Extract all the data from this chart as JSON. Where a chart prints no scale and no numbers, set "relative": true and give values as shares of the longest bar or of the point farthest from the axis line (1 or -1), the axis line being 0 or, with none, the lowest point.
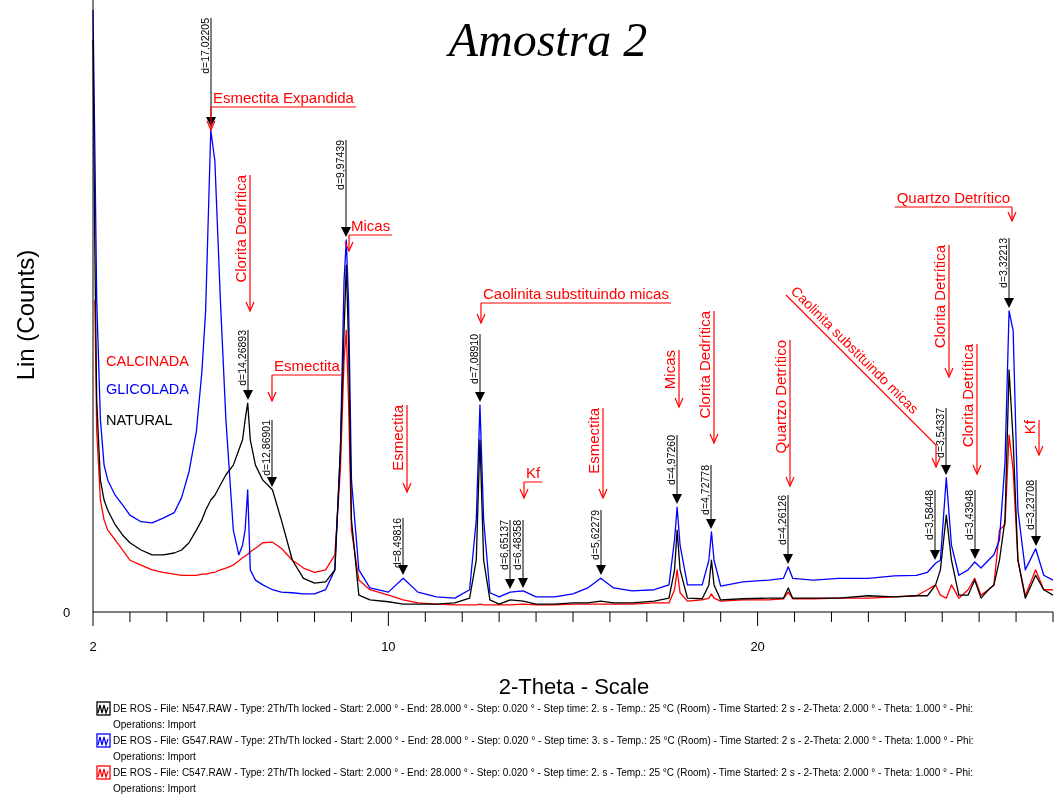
{
  "chart_data": {
    "type": "line",
    "title": "Amostra 2",
    "xlabel": "2-Theta - Scale",
    "ylabel": "Lin (Counts)",
    "relative": true,
    "legend": "bottom",
    "xlim": [
      2,
      28
    ],
    "xticks": [
      2,
      {
        "value": 3,
        "label": null
      },
      {
        "value": 4,
        "label": null
      },
      {
        "value": 5,
        "label": null
      },
      {
        "value": 6,
        "label": null
      },
      {
        "value": 7,
        "label": null
      },
      {
        "value": 8,
        "label": null
      },
      {
        "value": 9,
        "label": null
      },
      10,
      {
        "value": 11,
        "label": null
      },
      {
        "value": 12,
        "label": null
      },
      {
        "value": 13,
        "label": null
      },
      {
        "value": 14,
        "label": null
      },
      {
        "value": 15,
        "label": null
      },
      {
        "value": 16,
        "label": null
      },
      {
        "value": 17,
        "label": null
      },
      {
        "value": 18,
        "label": null
      },
      {
        "value": 19,
        "label": null
      },
      20,
      {
        "value": 21,
        "label": null
      },
      {
        "value": 22,
        "label": null
      },
      {
        "value": 23,
        "label": null
      },
      {
        "value": 24,
        "label": null
      },
      {
        "value": 25,
        "label": null
      },
      {
        "value": 26,
        "label": null
      },
      {
        "value": 27,
        "label": null
      },
      {
        "value": 28,
        "label": null
      }
    ],
    "x": [
      2,
      2.05,
      2.1,
      2.2,
      2.3,
      2.4,
      2.6,
      2.8,
      3,
      3.3,
      3.6,
      3.9,
      4.2,
      4.4,
      4.6,
      4.8,
      4.95,
      5.05,
      5.19,
      5.3,
      5.45,
      5.6,
      5.8,
      5.95,
      6.05,
      6.12,
      6.19,
      6.26,
      6.4,
      6.6,
      6.86,
      7.1,
      7.4,
      7.7,
      8,
      8.3,
      8.55,
      8.7,
      8.8,
      8.86,
      8.92,
      9,
      9.2,
      9.5,
      10,
      10.4,
      10.8,
      11.3,
      11.8,
      12.2,
      12.38,
      12.48,
      12.58,
      12.75,
      13,
      13.3,
      13.65,
      14,
      14.5,
      15,
      15.4,
      15.75,
      16.1,
      16.6,
      17.2,
      17.6,
      17.75,
      17.82,
      17.9,
      18.1,
      18.5,
      18.68,
      18.75,
      18.82,
      19,
      19.6,
      20.3,
      20.7,
      20.83,
      20.95,
      21.5,
      22.2,
      23,
      23.7,
      24.3,
      24.6,
      24.82,
      24.95,
      25.11,
      25.25,
      25.45,
      25.7,
      25.88,
      26.05,
      26.25,
      26.4,
      26.55,
      26.7,
      26.81,
      26.92,
      27.05,
      27.25,
      27.53,
      27.75,
      28
    ],
    "series": [
      {
        "name": "DE ROS - File: N547.RAW - Type: 2Th/Th locked - Start: 2.000 ° - End: 28.000 ° - Step: 0.020 ° - Step time: 2. s - Temp.: 25 °C (Room) - Time Started: 2 s - 2-Theta: 2.000 ° - Theta: 1.000 ° - Phi: Operations: Import",
        "color": "#000000",
        "values": [
          0.95,
          0.6,
          0.352,
          0.219,
          0.186,
          0.169,
          0.145,
          0.128,
          0.115,
          0.103,
          0.095,
          0.095,
          0.098,
          0.103,
          0.115,
          0.136,
          0.153,
          0.169,
          0.186,
          0.194,
          0.211,
          0.228,
          0.244,
          0.269,
          0.286,
          0.319,
          0.347,
          0.286,
          0.244,
          0.219,
          0.203,
          0.153,
          0.086,
          0.056,
          0.048,
          0.05,
          0.07,
          0.269,
          0.468,
          0.576,
          0.452,
          0.153,
          0.028,
          0.02,
          0.017,
          0.013,
          0.013,
          0.013,
          0.015,
          0.023,
          0.086,
          0.286,
          0.086,
          0.02,
          0.013,
          0.02,
          0.018,
          0.013,
          0.013,
          0.015,
          0.015,
          0.018,
          0.015,
          0.015,
          0.018,
          0.023,
          0.07,
          0.136,
          0.07,
          0.023,
          0.022,
          0.045,
          0.086,
          0.045,
          0.02,
          0.022,
          0.023,
          0.023,
          0.04,
          0.023,
          0.023,
          0.023,
          0.027,
          0.025,
          0.027,
          0.027,
          0.045,
          0.07,
          0.161,
          0.086,
          0.028,
          0.028,
          0.053,
          0.023,
          0.037,
          0.045,
          0.086,
          0.153,
          0.402,
          0.286,
          0.086,
          0.023,
          0.061,
          0.037,
          0.028
        ]
      },
      {
        "name": "DE ROS - File: G547.RAW - Type: 2Th/Th locked - Start: 2.000 ° - End: 28.000 ° - Step: 0.020 ° - Step time: 3. s - Temp.: 25 °C (Room) - Time Started: 2 s - 2-Theta: 2.000 ° - Theta: 1.000 ° - Phi: Operations: Import",
        "color": "#0000ff",
        "values": [
          1,
          0.77,
          0.52,
          0.32,
          0.244,
          0.219,
          0.194,
          0.178,
          0.161,
          0.15,
          0.148,
          0.156,
          0.165,
          0.19,
          0.233,
          0.3,
          0.4,
          0.5,
          0.8,
          0.75,
          0.518,
          0.319,
          0.136,
          0.095,
          0.111,
          0.136,
          0.203,
          0.07,
          0.053,
          0.045,
          0.037,
          0.033,
          0.032,
          0.03,
          0.03,
          0.037,
          0.07,
          0.269,
          0.551,
          0.618,
          0.518,
          0.219,
          0.07,
          0.04,
          0.033,
          0.056,
          0.033,
          0.025,
          0.023,
          0.037,
          0.153,
          0.344,
          0.153,
          0.032,
          0.025,
          0.033,
          0.035,
          0.025,
          0.025,
          0.03,
          0.04,
          0.056,
          0.04,
          0.035,
          0.037,
          0.045,
          0.12,
          0.174,
          0.111,
          0.045,
          0.045,
          0.086,
          0.133,
          0.086,
          0.043,
          0.05,
          0.053,
          0.056,
          0.075,
          0.056,
          0.053,
          0.056,
          0.056,
          0.06,
          0.061,
          0.066,
          0.081,
          0.086,
          0.223,
          0.111,
          0.061,
          0.07,
          0.083,
          0.073,
          0.086,
          0.095,
          0.12,
          0.248,
          0.5,
          0.468,
          0.169,
          0.07,
          0.105,
          0.061,
          0.053
        ]
      },
      {
        "name": "DE ROS - File: C547.RAW - Type: 2Th/Th locked - Start: 2.000 ° - End: 28.000 ° - Step: 0.020 ° - Step time: 2. s - Temp.: 25 °C (Room) - Time Started: 2 s - 2-Theta: 2.000 ° - Theta: 1.000 ° - Phi: Operations: Import",
        "color": "#ff0000",
        "values": [
          null,
          0.518,
          0.302,
          0.186,
          0.153,
          0.136,
          0.12,
          0.103,
          0.086,
          0.078,
          0.07,
          0.066,
          0.063,
          0.061,
          0.061,
          0.061,
          0.063,
          0.063,
          0.065,
          0.066,
          0.07,
          0.073,
          0.078,
          0.085,
          0.09,
          0.093,
          0.096,
          0.1,
          0.106,
          0.115,
          0.116,
          0.106,
          0.086,
          0.073,
          0.066,
          0.07,
          0.095,
          0.236,
          0.419,
          0.468,
          0.352,
          0.136,
          0.053,
          0.037,
          0.028,
          0.02,
          0.015,
          0.013,
          0.012,
          0.012,
          0.012,
          0.013,
          0.012,
          0.012,
          0.012,
          0.012,
          0.013,
          0.012,
          0.012,
          0.013,
          0.013,
          0.013,
          0.013,
          0.013,
          0.015,
          0.015,
          0.037,
          0.07,
          0.032,
          0.018,
          0.02,
          0.023,
          0.03,
          0.023,
          0.018,
          0.02,
          0.02,
          0.022,
          0.033,
          0.022,
          0.022,
          0.023,
          0.023,
          0.025,
          0.027,
          0.037,
          0.045,
          0.028,
          0.023,
          0.045,
          0.023,
          0.037,
          0.056,
          0.028,
          0.037,
          0.045,
          0.136,
          0.145,
          0.294,
          0.236,
          0.086,
          0.027,
          0.07,
          0.037,
          0.037
        ]
      }
    ],
    "annotations": [
      "0",
      "CALCINADA",
      "GLICOLADA",
      "NATURAL",
      "d=17,02205",
      "d=14,26893",
      "d=12,86901",
      "d=9,97439",
      "d=8,49816",
      "d=7,08910",
      "d=6,65137",
      "d=6,48358",
      "d=5,62279",
      "d=4,97260",
      "d=4,72778",
      "d=4,26126",
      "d=3,58448",
      "d=3,54337",
      "d=3,43948",
      "d=3,32213",
      "d=3,23708",
      "Esmectita Expandida",
      "Clorita Dedrítica",
      "Esmectita",
      "Micas",
      "Esmectita",
      "Caolinita substituindo micas",
      "Kf",
      "Esmectita",
      "Micas",
      "Clorita Dedrítica",
      "Quartzo Detrítico",
      "Caolinita substituindo micas",
      "Clorita Detrítica",
      "Clorita Detrítica",
      "Quartzo Detrítico",
      "Kf"
    ]
  }
}
